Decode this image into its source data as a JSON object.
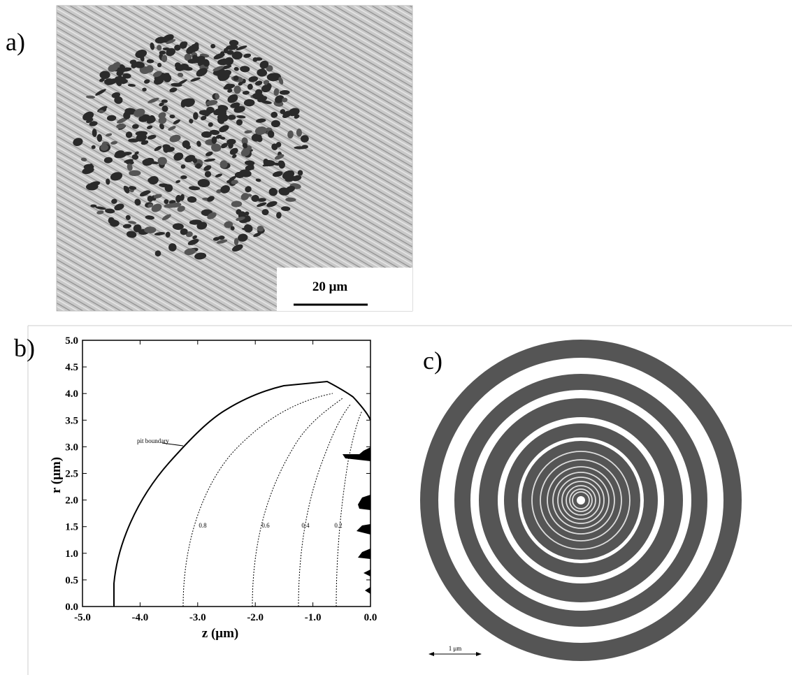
{
  "figure": {
    "panels": [
      {
        "label": "a)",
        "scale_bar": "20 μm"
      },
      {
        "label": "b)",
        "x_axis_label": "z (μm)",
        "y_axis_label": "r (μm)",
        "xticks": [
          "-5.0",
          "-4.0",
          "-3.0",
          "-2.0",
          "-1.0",
          "0.0"
        ],
        "yticks": [
          "0.0",
          "0.5",
          "1.0",
          "1.5",
          "2.0",
          "2.5",
          "3.0",
          "3.5",
          "4.0",
          "4.5",
          "5.0"
        ],
        "annotation": "pit boundary",
        "contour_labels": [
          "0.8",
          "0.6",
          "0.4",
          "0.2"
        ]
      },
      {
        "label": "c)",
        "scale_bar": "1 μm"
      }
    ]
  }
}
